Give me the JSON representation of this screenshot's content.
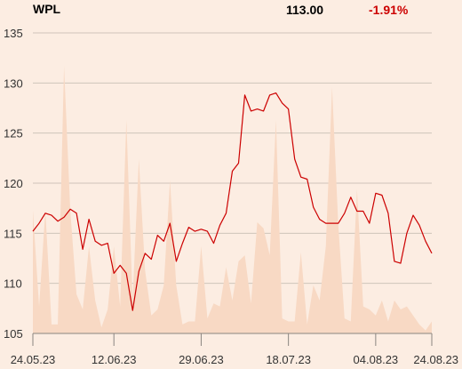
{
  "header": {
    "ticker": "WPL",
    "price": "113.00",
    "change": "-1.91%"
  },
  "colors": {
    "background": "#fcede2",
    "price_line": "#cc0000",
    "volume_area": "#f8d9c4",
    "grid": "#cfc4ba",
    "change_negative": "#cc0000"
  },
  "chart_data": {
    "type": "line",
    "title": "",
    "xlabel": "",
    "ylabel": "",
    "ylim": [
      105,
      135
    ],
    "yticks": [
      105,
      110,
      115,
      120,
      125,
      130,
      135
    ],
    "xtick_labels": [
      "24.05.23",
      "12.06.23",
      "29.06.23",
      "18.07.23",
      "04.08.23",
      "24.08.23"
    ],
    "grid": true,
    "series": [
      {
        "role": "price",
        "values": [
          115.2,
          116.0,
          117.0,
          116.8,
          116.2,
          116.6,
          117.4,
          117.0,
          113.4,
          116.4,
          114.2,
          113.8,
          114.0,
          111.0,
          111.8,
          111.0,
          107.3,
          111.2,
          113.0,
          112.4,
          114.8,
          114.2,
          116.0,
          112.2,
          114.0,
          115.6,
          115.2,
          115.4,
          115.2,
          114.0,
          115.8,
          117.0,
          121.2,
          122.0,
          128.8,
          127.2,
          127.4,
          127.2,
          128.8,
          129.0,
          128.0,
          127.4,
          122.4,
          120.6,
          120.4,
          117.6,
          116.4,
          116.0,
          116.0,
          116.0,
          117.0,
          118.6,
          117.2,
          117.2,
          116.0,
          119.0,
          118.8,
          117.0,
          112.2,
          112.0,
          115.0,
          116.8,
          115.8,
          114.2,
          113.0
        ]
      },
      {
        "role": "volume",
        "values": [
          0.41,
          0.09,
          0.41,
          0.03,
          0.03,
          0.89,
          0.41,
          0.13,
          0.08,
          0.29,
          0.11,
          0.02,
          0.08,
          0.29,
          0.09,
          0.71,
          0.11,
          0.58,
          0.21,
          0.06,
          0.08,
          0.16,
          0.51,
          0.16,
          0.03,
          0.04,
          0.04,
          0.29,
          0.05,
          0.1,
          0.09,
          0.22,
          0.11,
          0.24,
          0.26,
          0.1,
          0.37,
          0.35,
          0.26,
          0.71,
          0.05,
          0.04,
          0.04,
          0.27,
          0.03,
          0.16,
          0.11,
          0.29,
          0.82,
          0.36,
          0.05,
          0.04,
          0.48,
          0.09,
          0.08,
          0.06,
          0.11,
          0.04,
          0.11,
          0.08,
          0.09,
          0.06,
          0.03,
          0.01,
          0.04
        ]
      }
    ]
  }
}
